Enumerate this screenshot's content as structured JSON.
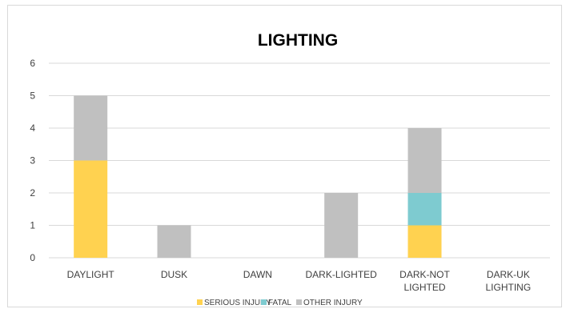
{
  "chart_data": {
    "type": "bar",
    "stacked": true,
    "title": "LIGHTING",
    "categories": [
      [
        "DAYLIGHT"
      ],
      [
        "DUSK"
      ],
      [
        "DAWN"
      ],
      [
        "DARK-LIGHTED"
      ],
      [
        "DARK-NOT",
        "LIGHTED"
      ],
      [
        "DARK-UK",
        "LIGHTING"
      ]
    ],
    "series": [
      {
        "name": "SERIOUS INJURY",
        "color": "#ffd250",
        "values": [
          3,
          0,
          0,
          0,
          1,
          0
        ]
      },
      {
        "name": "FATAL",
        "color": "#7ecbd0",
        "values": [
          0,
          0,
          0,
          0,
          1,
          0
        ]
      },
      {
        "name": "OTHER INJURY",
        "color": "#c0c0c0",
        "values": [
          2,
          1,
          0,
          2,
          2,
          0
        ]
      }
    ],
    "ylim": [
      0,
      6
    ],
    "yticks": [
      0,
      1,
      2,
      3,
      4,
      5,
      6
    ],
    "grid": true,
    "legend": "bottom"
  }
}
